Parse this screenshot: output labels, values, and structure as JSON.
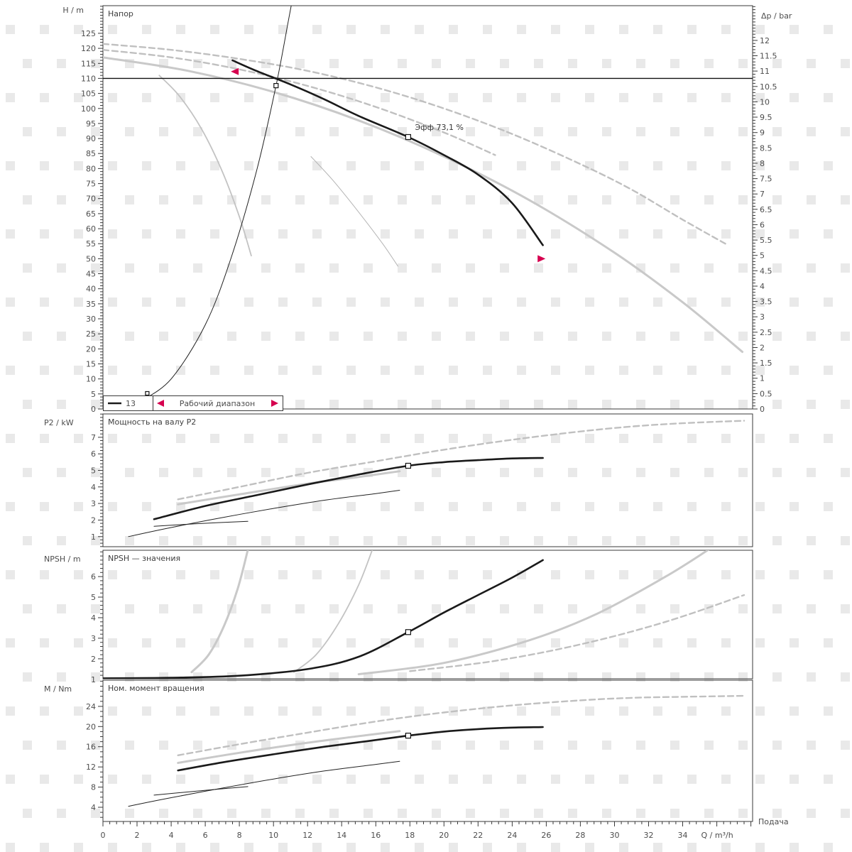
{
  "colors": {
    "accent_red": "#d6004f",
    "curve_black": "#1a1a1a",
    "curve_gray": "#c6c6c6",
    "border": "#3a3a3a",
    "text": "#4d4d4d",
    "watermark": "#e9e9e9"
  },
  "legend": {
    "curve_label": "13",
    "range_label": "Рабочий диапазон"
  },
  "x_axis": {
    "min": 0,
    "max": 38.1,
    "minor": 0.4,
    "major": 2,
    "major_ticks": [
      0,
      2,
      4,
      6,
      8,
      10,
      12,
      14,
      16,
      18,
      20,
      22,
      24,
      26,
      28,
      30,
      32,
      34
    ],
    "unit_label": "Q / m³/h",
    "name_label": "Подача"
  },
  "chart_data": [
    {
      "type": "line",
      "title": "Напор",
      "y_axis": {
        "label": "H / m",
        "min": 0,
        "max": 134.2,
        "minor": 1,
        "labels": [
          0,
          5,
          10,
          15,
          20,
          25,
          30,
          35,
          40,
          45,
          50,
          55,
          60,
          65,
          70,
          75,
          80,
          85,
          90,
          95,
          100,
          105,
          110,
          115,
          120,
          125
        ]
      },
      "y2_axis": {
        "label": "Δp / bar",
        "min": 0,
        "max": 13.13,
        "minor": 0.1,
        "labels": [
          0,
          0.5,
          1,
          1.5,
          2,
          2.5,
          3,
          3.5,
          4,
          4.5,
          5,
          5.5,
          6,
          6.5,
          7,
          7.5,
          8,
          8.5,
          9,
          9.5,
          10,
          10.5,
          11,
          11.5,
          12
        ]
      },
      "series": [
        {
          "name": "alt-pump-dashed-high",
          "style": "gray-dashed",
          "points": [
            [
              0,
              121.5
            ],
            [
              4,
              119.5
            ],
            [
              8,
              116.5
            ],
            [
              12,
              112.5
            ],
            [
              16,
              107
            ],
            [
              20,
              100
            ],
            [
              24,
              91.5
            ],
            [
              28,
              81.5
            ],
            [
              31,
              73
            ],
            [
              34,
              63
            ],
            [
              36.5,
              55
            ]
          ]
        },
        {
          "name": "alt-pump-dashed-low",
          "style": "gray-dashed",
          "points": [
            [
              0,
              119.5
            ],
            [
              4,
              117
            ],
            [
              8,
              113
            ],
            [
              12,
              107.5
            ],
            [
              16,
              100.5
            ],
            [
              20,
              92
            ],
            [
              23,
              84.5
            ]
          ]
        },
        {
          "name": "alt-pump-max-speed",
          "style": "gray-thick",
          "points": [
            [
              0,
              117
            ],
            [
              5,
              112.5
            ],
            [
              10,
              105.5
            ],
            [
              15,
              96
            ],
            [
              20,
              84
            ],
            [
              25,
              69.5
            ],
            [
              30,
              52
            ],
            [
              34,
              35.5
            ],
            [
              37.5,
              19
            ]
          ]
        },
        {
          "name": "reduced-speed-curve-1",
          "style": "gray-med",
          "points": [
            [
              3.3,
              111
            ],
            [
              4.5,
              104
            ],
            [
              5.8,
              93
            ],
            [
              7,
              79
            ],
            [
              8,
              64
            ],
            [
              8.7,
              51
            ]
          ]
        },
        {
          "name": "reduced-speed-curve-2",
          "style": "gray-thin",
          "points": [
            [
              12.2,
              84
            ],
            [
              13.5,
              76
            ],
            [
              15,
              65.5
            ],
            [
              16.4,
              55
            ],
            [
              17.3,
              47.5
            ]
          ]
        },
        {
          "name": "required-head-line",
          "style": "black-med",
          "points": [
            [
              0,
              110
            ],
            [
              38.1,
              110
            ]
          ]
        },
        {
          "name": "system-curve",
          "style": "black-thin",
          "points": [
            [
              2.2,
              2.5
            ],
            [
              4,
              10
            ],
            [
              6,
              28
            ],
            [
              7.5,
              50
            ],
            [
              9,
              79
            ],
            [
              10.15,
              107.6
            ],
            [
              10.9,
              130
            ],
            [
              11.3,
              142
            ]
          ]
        },
        {
          "name": "selected-pump-curve",
          "style": "black-thick",
          "points": [
            [
              7.6,
              116
            ],
            [
              9,
              112.5
            ],
            [
              11,
              108
            ],
            [
              13,
              103
            ],
            [
              15,
              97.5
            ],
            [
              17.9,
              90.5
            ],
            [
              20,
              84.5
            ],
            [
              22,
              78
            ],
            [
              24,
              68.5
            ],
            [
              25.8,
              54.5
            ]
          ]
        }
      ],
      "markers": [
        {
          "type": "arrow-left",
          "q": 7.75,
          "v": 112.3
        },
        {
          "type": "arrow-right",
          "q": 25.7,
          "v": 50
        },
        {
          "type": "cross-square",
          "q": 10.15,
          "v": 107.6
        },
        {
          "type": "duty-square",
          "q": 17.9,
          "v": 90.5
        },
        {
          "type": "small-square",
          "q": 2.6,
          "v": 5.2
        }
      ],
      "annotations": [
        {
          "text": "Эфф 73,1 %",
          "q": 18.3,
          "v": 92.8
        }
      ]
    },
    {
      "type": "line",
      "title": "Мощность на валу P2",
      "y_axis": {
        "label": "P2 / kW",
        "min": 0.39,
        "max": 8.41,
        "minor": 0.2,
        "labels": [
          1,
          2,
          3,
          4,
          5,
          6,
          7
        ]
      },
      "series": [
        {
          "name": "p2-dashed-top",
          "style": "gray-dashed",
          "points": [
            [
              4.4,
              3.25
            ],
            [
              8,
              4.0
            ],
            [
              12,
              4.85
            ],
            [
              16,
              5.55
            ],
            [
              20,
              6.25
            ],
            [
              24,
              6.85
            ],
            [
              28,
              7.35
            ],
            [
              31,
              7.65
            ],
            [
              34,
              7.85
            ],
            [
              37.6,
              8.0
            ]
          ]
        },
        {
          "name": "p2-gray",
          "style": "gray-thick",
          "points": [
            [
              4.4,
              2.95
            ],
            [
              8,
              3.55
            ],
            [
              12,
              4.2
            ],
            [
              15,
              4.6
            ],
            [
              17.4,
              4.95
            ]
          ]
        },
        {
          "name": "p2-selected",
          "style": "black-thick",
          "points": [
            [
              3,
              2.05
            ],
            [
              6,
              2.85
            ],
            [
              9,
              3.5
            ],
            [
              12,
              4.15
            ],
            [
              15,
              4.75
            ],
            [
              17.9,
              5.28
            ],
            [
              20,
              5.5
            ],
            [
              22,
              5.62
            ],
            [
              24,
              5.72
            ],
            [
              25.8,
              5.75
            ]
          ]
        },
        {
          "name": "p2-thin-a",
          "style": "black-thin",
          "points": [
            [
              1.5,
              1.0
            ],
            [
              4,
              1.55
            ],
            [
              7,
              2.15
            ],
            [
              10,
              2.7
            ],
            [
              13,
              3.2
            ],
            [
              16,
              3.6
            ],
            [
              17.4,
              3.8
            ]
          ]
        },
        {
          "name": "p2-thin-b",
          "style": "black-thin",
          "points": [
            [
              3,
              1.62
            ],
            [
              5.5,
              1.78
            ],
            [
              8.5,
              1.92
            ]
          ]
        }
      ],
      "markers": [
        {
          "type": "duty-square",
          "q": 17.9,
          "v": 5.28
        }
      ],
      "annotations": []
    },
    {
      "type": "line",
      "title": "NPSH — значения",
      "y_axis": {
        "label": "NPSH / m",
        "min": 1.03,
        "max": 7.28,
        "minor": 0.2,
        "labels": [
          1,
          2,
          3,
          4,
          5,
          6
        ]
      },
      "series": [
        {
          "name": "npsh-steep-1",
          "style": "gray-thick",
          "points": [
            [
              5.2,
              1.35
            ],
            [
              6.2,
              2.2
            ],
            [
              7.1,
              3.6
            ],
            [
              7.9,
              5.4
            ],
            [
              8.5,
              7.3
            ]
          ]
        },
        {
          "name": "npsh-steep-2",
          "style": "gray-med",
          "points": [
            [
              11.2,
              1.35
            ],
            [
              12.5,
              2.2
            ],
            [
              13.8,
              3.7
            ],
            [
              15,
              5.6
            ],
            [
              15.8,
              7.3
            ]
          ]
        },
        {
          "name": "npsh-big",
          "style": "gray-thick",
          "points": [
            [
              15,
              1.25
            ],
            [
              20,
              1.8
            ],
            [
              25,
              2.9
            ],
            [
              29,
              4.2
            ],
            [
              33,
              6.0
            ],
            [
              35.5,
              7.3
            ]
          ]
        },
        {
          "name": "npsh-dashed",
          "style": "gray-dashed",
          "points": [
            [
              18,
              1.4
            ],
            [
              23,
              1.9
            ],
            [
              28,
              2.7
            ],
            [
              33,
              3.8
            ],
            [
              37.6,
              5.1
            ]
          ]
        },
        {
          "name": "npsh-selected",
          "style": "black-thick",
          "points": [
            [
              0,
              1.05
            ],
            [
              4,
              1.08
            ],
            [
              8,
              1.18
            ],
            [
              12,
              1.5
            ],
            [
              15,
              2.1
            ],
            [
              17.9,
              3.3
            ],
            [
              20,
              4.25
            ],
            [
              22,
              5.1
            ],
            [
              24,
              5.95
            ],
            [
              25.8,
              6.8
            ]
          ]
        }
      ],
      "markers": [
        {
          "type": "duty-square",
          "q": 17.9,
          "v": 3.3
        }
      ],
      "annotations": []
    },
    {
      "type": "line",
      "title": "Ном. момент вращения",
      "y_axis": {
        "label": "M / Nm",
        "min": 1.18,
        "max": 29.2,
        "minor": 1,
        "labels": [
          4,
          8,
          12,
          16,
          20,
          24
        ]
      },
      "series": [
        {
          "name": "torque-dashed-top",
          "style": "gray-dashed",
          "points": [
            [
              4.4,
              14.3
            ],
            [
              8,
              16.5
            ],
            [
              12,
              18.8
            ],
            [
              16,
              21
            ],
            [
              20,
              22.8
            ],
            [
              24,
              24.2
            ],
            [
              28,
              25.2
            ],
            [
              31,
              25.7
            ],
            [
              34,
              25.9
            ],
            [
              37.6,
              26.1
            ]
          ]
        },
        {
          "name": "torque-gray",
          "style": "gray-thick",
          "points": [
            [
              4.4,
              12.8
            ],
            [
              8,
              14.8
            ],
            [
              12,
              16.8
            ],
            [
              15,
              18.1
            ],
            [
              17.4,
              19.1
            ]
          ]
        },
        {
          "name": "torque-selected",
          "style": "black-thick",
          "points": [
            [
              4.4,
              11.3
            ],
            [
              7,
              12.9
            ],
            [
              10,
              14.5
            ],
            [
              13,
              16
            ],
            [
              15.5,
              17.1
            ],
            [
              17.9,
              18.2
            ],
            [
              20,
              19
            ],
            [
              22,
              19.5
            ],
            [
              24,
              19.8
            ],
            [
              25.8,
              19.9
            ]
          ]
        },
        {
          "name": "torque-thin-a",
          "style": "black-thin",
          "points": [
            [
              1.5,
              4.2
            ],
            [
              4,
              5.9
            ],
            [
              7,
              7.8
            ],
            [
              10,
              9.6
            ],
            [
              13,
              11.2
            ],
            [
              16,
              12.5
            ],
            [
              17.4,
              13.1
            ]
          ]
        },
        {
          "name": "torque-thin-b",
          "style": "black-thin",
          "points": [
            [
              3,
              6.4
            ],
            [
              5.5,
              7.2
            ],
            [
              8.5,
              8.1
            ]
          ]
        }
      ],
      "markers": [
        {
          "type": "duty-square",
          "q": 17.9,
          "v": 18.2
        }
      ],
      "annotations": []
    }
  ]
}
